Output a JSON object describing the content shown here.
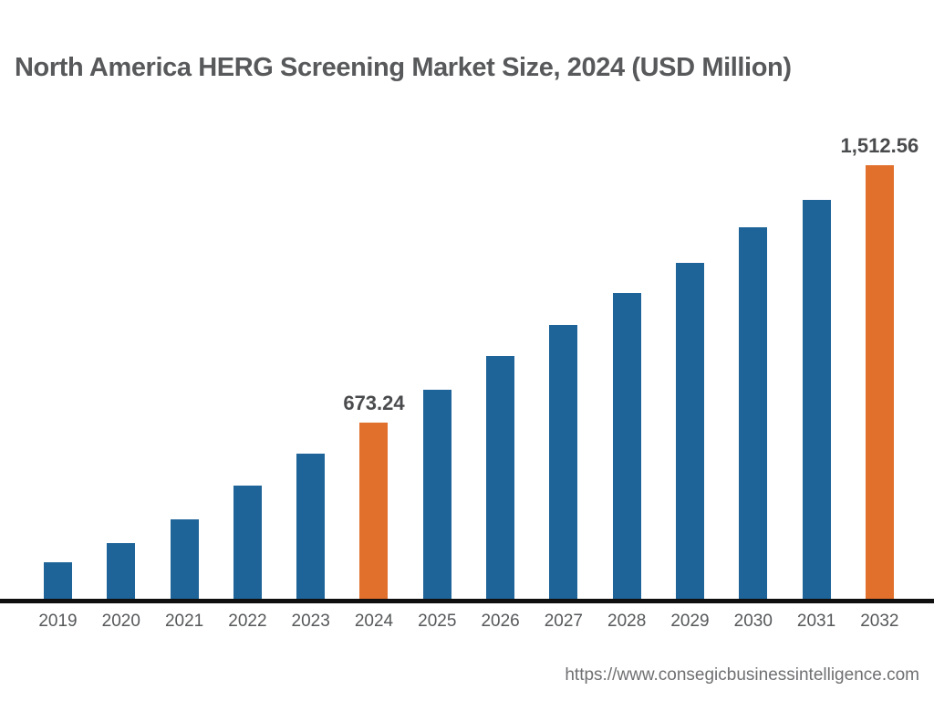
{
  "title": "North America HERG Screening Market Size, 2024 (USD Million)",
  "footer": {
    "url": "https://www.consegicbusinessintelligence.com"
  },
  "colors": {
    "background": "#FFFFFF",
    "bar_default": "#1F6498",
    "bar_highlight": "#E2702D",
    "title_text": "#58595B",
    "value_label_text": "#4A4B4D",
    "tick_text": "#56585A",
    "axis_line": "#0F0F0F",
    "footer_text": "#6F7072"
  },
  "chart_data": {
    "type": "bar",
    "title": "North America HERG Screening Market Size, 2024 (USD Million)",
    "ylabel": "USD Million",
    "categories": [
      "2019",
      "2020",
      "2021",
      "2022",
      "2023",
      "2024",
      "2025",
      "2026",
      "2027",
      "2028",
      "2029",
      "2030",
      "2031",
      "2032"
    ],
    "values": [
      218,
      280,
      358,
      468,
      572,
      673.24,
      780,
      890,
      992,
      1096,
      1194,
      1310,
      1400,
      1512.56
    ],
    "data_labels": [
      "",
      "",
      "",
      "",
      "",
      "673.24",
      "",
      "",
      "",
      "",
      "",
      "",
      "",
      "1,512.56"
    ],
    "highlighted_categories": [
      "2024",
      "2032"
    ],
    "legend": false,
    "grid": false,
    "y_axis_visible": false,
    "note": "Only 2024 and 2032 carry visible data labels; other values estimated from bar heights"
  }
}
